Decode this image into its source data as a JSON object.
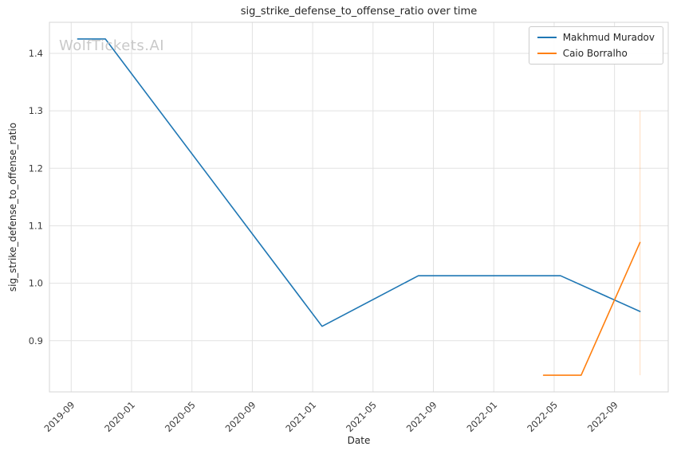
{
  "title": "sig_strike_defense_to_offense_ratio over time",
  "watermark": "WolfTickets.AI",
  "xlabel": "Date",
  "ylabel": "sig_strike_defense_to_offense_ratio",
  "chart_data": {
    "type": "line",
    "title": "sig_strike_defense_to_offense_ratio over time",
    "xlabel": "Date",
    "ylabel": "sig_strike_defense_to_offense_ratio",
    "grid": true,
    "legend_position": "top-right",
    "x_ticks": [
      "2019-09",
      "2020-01",
      "2020-05",
      "2020-09",
      "2021-01",
      "2021-05",
      "2021-09",
      "2022-01",
      "2022-05",
      "2022-09"
    ],
    "y_ticks": [
      0.9,
      1.0,
      1.1,
      1.2,
      1.3,
      1.4
    ],
    "xlim": [
      "2019-07-18",
      "2022-12-18"
    ],
    "ylim": [
      0.811,
      1.454
    ],
    "series": [
      {
        "name": "Makhmud Muradov",
        "color": "#1f77b4",
        "points": [
          [
            "2019-09-14",
            1.425
          ],
          [
            "2019-11-09",
            1.425
          ],
          [
            "2021-01-20",
            0.925
          ],
          [
            "2021-08-01",
            1.013
          ],
          [
            "2022-05-14",
            1.013
          ],
          [
            "2022-10-22",
            0.951
          ]
        ]
      },
      {
        "name": "Caio Borralho",
        "color": "#ff7f0e",
        "points": [
          [
            "2022-04-10",
            0.84
          ],
          [
            "2022-06-25",
            0.84
          ],
          [
            "2022-10-22",
            1.071
          ]
        ]
      }
    ],
    "annotations": {
      "vline": {
        "x": "2022-10-22",
        "color": "#ff7f0e",
        "opacity": 0.2,
        "y_range": [
          0.84,
          1.3
        ]
      }
    }
  }
}
